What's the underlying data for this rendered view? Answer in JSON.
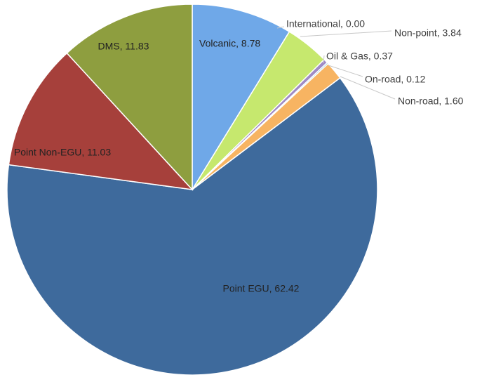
{
  "chart_data": {
    "type": "pie",
    "title": "",
    "start_angle_deg": 0,
    "direction": "clockwise",
    "slices": [
      {
        "name": "Volcanic",
        "value": 8.78,
        "label": "Volcanic, 8.78",
        "color": "#6FA8E8",
        "label_position": "inside"
      },
      {
        "name": "International",
        "value": 0.0,
        "label": "International, 0.00",
        "color": "#8064A2",
        "label_position": "outside"
      },
      {
        "name": "Non-point",
        "value": 3.84,
        "label": "Non-point, 3.84",
        "color": "#C6E86E",
        "label_position": "outside"
      },
      {
        "name": "Oil & Gas",
        "value": 0.37,
        "label": "Oil & Gas, 0.37",
        "color": "#9F8BC6",
        "label_position": "outside"
      },
      {
        "name": "On-road",
        "value": 0.12,
        "label": "On-road, 0.12",
        "color": "#4BACC6",
        "label_position": "outside"
      },
      {
        "name": "Non-road",
        "value": 1.6,
        "label": "Non-road, 1.60",
        "color": "#F7B462",
        "label_position": "outside"
      },
      {
        "name": "Point EGU",
        "value": 62.42,
        "label": "Point EGU, 62.42",
        "color": "#3E6A9C",
        "label_position": "inside"
      },
      {
        "name": "Point Non-EGU",
        "value": 11.03,
        "label": "Point Non-EGU, 11.03",
        "color": "#A6403B",
        "label_position": "inside"
      },
      {
        "name": "DMS",
        "value": 11.83,
        "label": "DMS, 11.83",
        "color": "#8E9E3F",
        "label_position": "inside"
      }
    ]
  }
}
